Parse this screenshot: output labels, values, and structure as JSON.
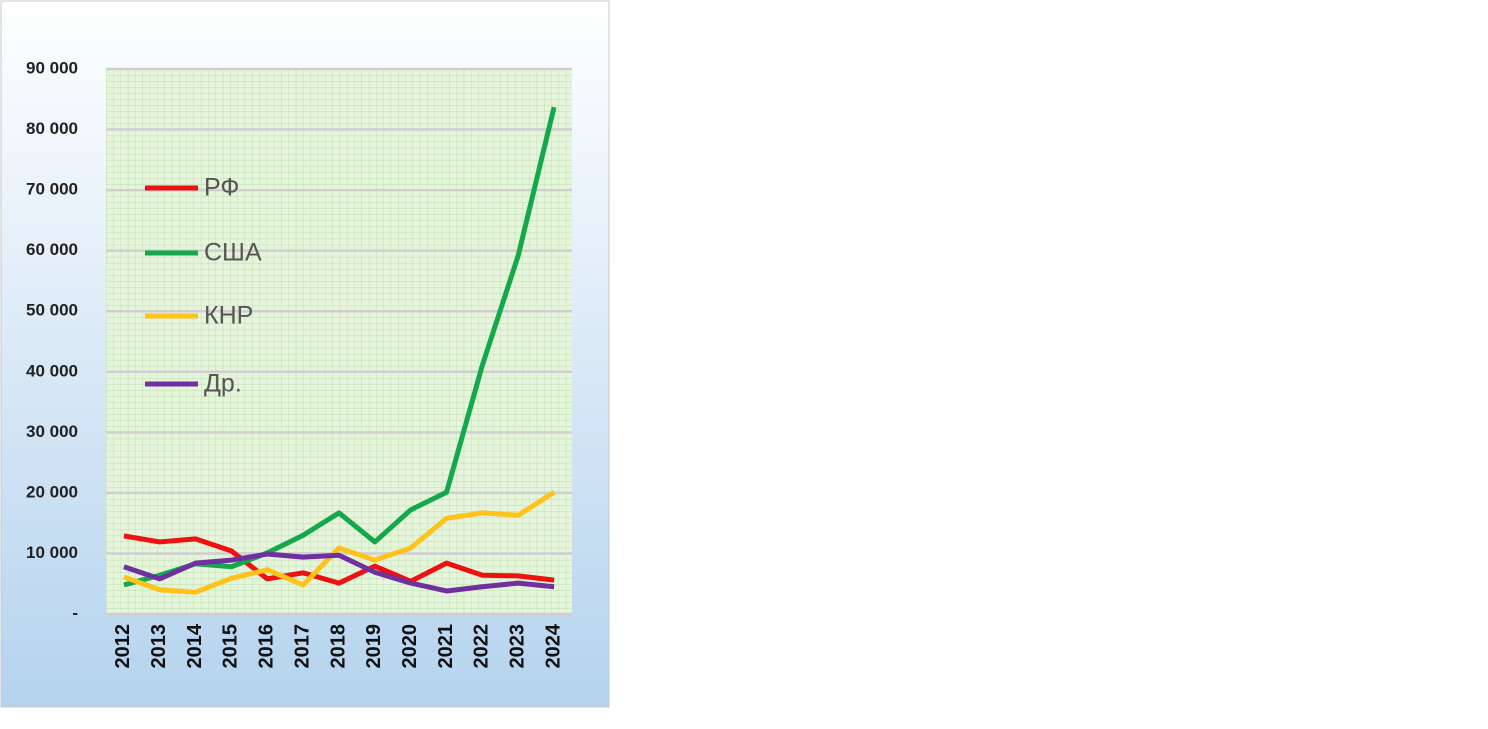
{
  "chart_data": {
    "type": "line",
    "categories": [
      "2012",
      "2013",
      "2014",
      "2015",
      "2016",
      "2017",
      "2018",
      "2019",
      "2020",
      "2021",
      "2022",
      "2023",
      "2024"
    ],
    "series": [
      {
        "name": "РФ",
        "color": "#ee1111",
        "values": [
          12900,
          11900,
          12400,
          10400,
          5800,
          6800,
          5100,
          7900,
          5400,
          8400,
          6400,
          6300,
          5600
        ]
      },
      {
        "name": "США",
        "color": "#13a84a",
        "values": [
          4800,
          6400,
          8300,
          7800,
          10100,
          13000,
          16700,
          11900,
          17200,
          20100,
          41100,
          59200,
          83700
        ]
      },
      {
        "name": "КНР",
        "color": "#ffc21a",
        "values": [
          6100,
          4000,
          3600,
          5900,
          7300,
          4800,
          10900,
          8900,
          10900,
          15800,
          16700,
          16300,
          20100
        ]
      },
      {
        "name": "Др.",
        "color": "#7030a0",
        "values": [
          7800,
          5800,
          8400,
          8900,
          9900,
          9400,
          9700,
          6900,
          5100,
          3800,
          4500,
          5100,
          4500
        ]
      }
    ],
    "ylim": [
      0,
      90000
    ],
    "yticks": [
      {
        "value": 0,
        "label": "-"
      },
      {
        "value": 10000,
        "label": "10 000"
      },
      {
        "value": 20000,
        "label": "20 000"
      },
      {
        "value": 30000,
        "label": "30 000"
      },
      {
        "value": 40000,
        "label": "40 000"
      },
      {
        "value": 50000,
        "label": "50 000"
      },
      {
        "value": 60000,
        "label": "60 000"
      },
      {
        "value": 70000,
        "label": "70 000"
      },
      {
        "value": 80000,
        "label": "80 000"
      },
      {
        "value": 90000,
        "label": "90 000"
      }
    ],
    "grid": true,
    "legend": "upper left"
  }
}
